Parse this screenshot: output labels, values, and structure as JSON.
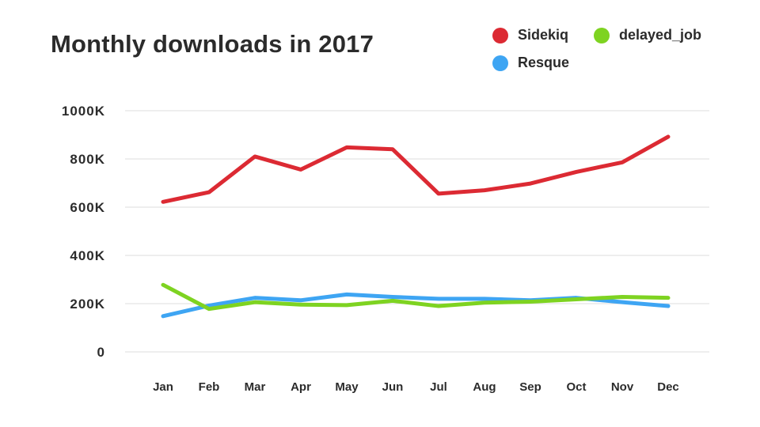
{
  "chart_data": {
    "type": "line",
    "title": "Monthly downloads in 2017",
    "xlabel": "",
    "ylabel": "",
    "categories": [
      "Jan",
      "Feb",
      "Mar",
      "Apr",
      "May",
      "Jun",
      "Jul",
      "Aug",
      "Sep",
      "Oct",
      "Nov",
      "Dec"
    ],
    "y_ticks": [
      "0",
      "200K",
      "400K",
      "600K",
      "800K",
      "1000K"
    ],
    "ylim": [
      0,
      1000000
    ],
    "grid": true,
    "legend_position": "top-right",
    "series": [
      {
        "name": "Sidekiq",
        "color": "#dc2a33",
        "values": [
          622000,
          662000,
          810000,
          756000,
          848000,
          840000,
          656000,
          670000,
          698000,
          746000,
          786000,
          892000
        ]
      },
      {
        "name": "Resque",
        "color": "#3ea5f3",
        "values": [
          148000,
          192000,
          224000,
          214000,
          238000,
          228000,
          220000,
          220000,
          214000,
          224000,
          206000,
          190000
        ]
      },
      {
        "name": "delayed_job",
        "color": "#7ed321",
        "values": [
          278000,
          178000,
          206000,
          196000,
          194000,
          212000,
          190000,
          204000,
          208000,
          218000,
          228000,
          224000
        ]
      }
    ]
  }
}
